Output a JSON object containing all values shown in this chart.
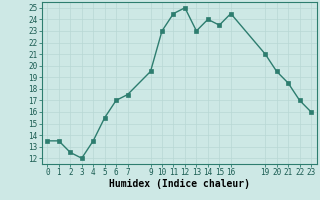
{
  "x": [
    0,
    1,
    2,
    3,
    4,
    5,
    6,
    7,
    9,
    10,
    11,
    12,
    13,
    14,
    15,
    16,
    19,
    20,
    21,
    22,
    23
  ],
  "y": [
    13.5,
    13.5,
    12.5,
    12.0,
    13.5,
    15.5,
    17.0,
    17.5,
    19.5,
    23.0,
    24.5,
    25.0,
    23.0,
    24.0,
    23.5,
    24.5,
    21.0,
    19.5,
    18.5,
    17.0,
    16.0
  ],
  "line_color": "#2d7d6f",
  "marker_color": "#2d7d6f",
  "bg_color": "#cde8e5",
  "grid_color": "#b8d8d4",
  "xlabel": "Humidex (Indice chaleur)",
  "xlim": [
    -0.5,
    23.5
  ],
  "ylim": [
    11.5,
    25.5
  ],
  "yticks": [
    12,
    13,
    14,
    15,
    16,
    17,
    18,
    19,
    20,
    21,
    22,
    23,
    24,
    25
  ],
  "xticks": [
    0,
    1,
    2,
    3,
    4,
    5,
    6,
    7,
    9,
    10,
    11,
    12,
    13,
    14,
    15,
    16,
    19,
    20,
    21,
    22,
    23
  ],
  "tick_fontsize": 5.5,
  "xlabel_fontsize": 7.0
}
